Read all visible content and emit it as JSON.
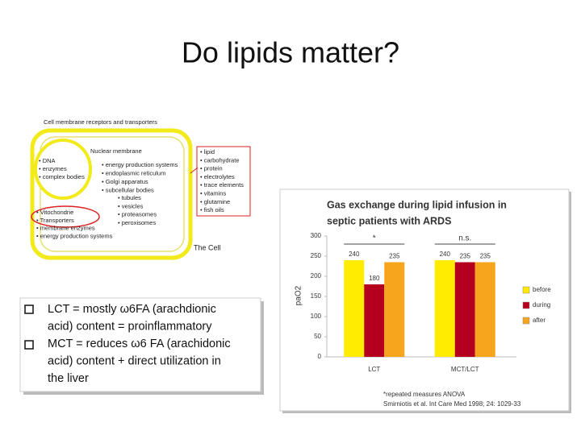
{
  "slide": {
    "title": "Do lipids matter?"
  },
  "cell_diagram": {
    "heading": "Cell membrane receptors and transporters",
    "nucleus_items": [
      "• DNA",
      "• enzymes",
      "• complex bodies"
    ],
    "nuclear_membrane": "Nuclear membrane",
    "cytoplasm_items": [
      "• energy production systems",
      "• endoplasmic reticulum",
      "• Golgi apparatus",
      "• subcellular bodies"
    ],
    "subcellular_items": [
      "• tubules",
      "• vesicles",
      "• proteasomes",
      "• peroxisomes"
    ],
    "membrane_items": [
      "• Vitochondrie",
      "• Transporters",
      "• membrane enzymes",
      "• energy production systems"
    ],
    "nutrient_items": [
      "• lipid",
      "• carbohydrate",
      "• protein",
      "• electrolytes",
      "• trace elements",
      "• vitamins",
      "• glutamine",
      "• fish oils"
    ],
    "caption": "The Cell"
  },
  "bullets": [
    {
      "lines": [
        "LCT = mostly ω6FA (arachdionic",
        "acid) content = proinflammatory"
      ]
    },
    {
      "lines": [
        "MCT = reduces ω6 FA (arachidonic",
        "acid) content + direct utilization in",
        "the liver"
      ]
    }
  ],
  "chart_data": {
    "type": "bar",
    "title": [
      "Gas exchange during lipid infusion in",
      "septic patients with ARDS"
    ],
    "y_label": "paO2",
    "categories": [
      "LCT",
      "MCT/LCT"
    ],
    "series": [
      {
        "name": "before",
        "color": "#ffec00",
        "values": [
          240,
          240
        ]
      },
      {
        "name": "during",
        "color": "#b4001e",
        "values": [
          180,
          235
        ]
      },
      {
        "name": "after",
        "color": "#f7a51c",
        "values": [
          235,
          235
        ]
      }
    ],
    "significance": [
      "*",
      "n.s."
    ],
    "ylim": [
      0,
      300
    ],
    "yticks": [
      0,
      50,
      100,
      150,
      200,
      250,
      300
    ],
    "grid": false,
    "legend": "right",
    "notes": [
      "*repeated measures ANOVA",
      "Smirniotis et al. Int Care Med 1998; 24: 1029-33"
    ]
  }
}
